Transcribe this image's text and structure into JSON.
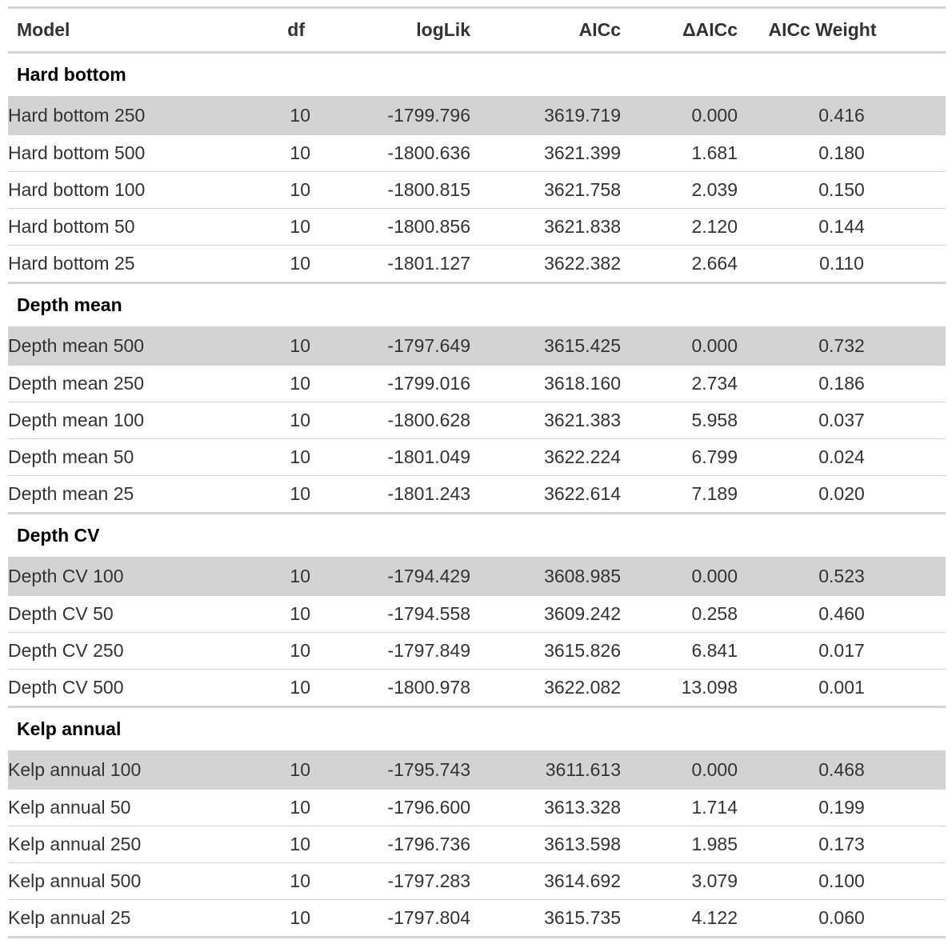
{
  "table": {
    "headers": {
      "model": "Model",
      "df": "df",
      "loglik": "logLik",
      "aicc": "AICc",
      "daicc": "ΔAICc",
      "weight": "AICc Weight"
    },
    "groups": [
      {
        "name": "Hard bottom",
        "rows": [
          {
            "model": "Hard bottom 250",
            "df": "10",
            "loglik": "-1799.796",
            "aicc": "3619.719",
            "daicc": "0.000",
            "weight": "0.416"
          },
          {
            "model": "Hard bottom 500",
            "df": "10",
            "loglik": "-1800.636",
            "aicc": "3621.399",
            "daicc": "1.681",
            "weight": "0.180"
          },
          {
            "model": "Hard bottom 100",
            "df": "10",
            "loglik": "-1800.815",
            "aicc": "3621.758",
            "daicc": "2.039",
            "weight": "0.150"
          },
          {
            "model": "Hard bottom 50",
            "df": "10",
            "loglik": "-1800.856",
            "aicc": "3621.838",
            "daicc": "2.120",
            "weight": "0.144"
          },
          {
            "model": "Hard bottom 25",
            "df": "10",
            "loglik": "-1801.127",
            "aicc": "3622.382",
            "daicc": "2.664",
            "weight": "0.110"
          }
        ]
      },
      {
        "name": "Depth mean",
        "rows": [
          {
            "model": "Depth mean 500",
            "df": "10",
            "loglik": "-1797.649",
            "aicc": "3615.425",
            "daicc": "0.000",
            "weight": "0.732"
          },
          {
            "model": "Depth mean 250",
            "df": "10",
            "loglik": "-1799.016",
            "aicc": "3618.160",
            "daicc": "2.734",
            "weight": "0.186"
          },
          {
            "model": "Depth mean 100",
            "df": "10",
            "loglik": "-1800.628",
            "aicc": "3621.383",
            "daicc": "5.958",
            "weight": "0.037"
          },
          {
            "model": "Depth mean 50",
            "df": "10",
            "loglik": "-1801.049",
            "aicc": "3622.224",
            "daicc": "6.799",
            "weight": "0.024"
          },
          {
            "model": "Depth mean 25",
            "df": "10",
            "loglik": "-1801.243",
            "aicc": "3622.614",
            "daicc": "7.189",
            "weight": "0.020"
          }
        ]
      },
      {
        "name": "Depth CV",
        "rows": [
          {
            "model": "Depth CV 100",
            "df": "10",
            "loglik": "-1794.429",
            "aicc": "3608.985",
            "daicc": "0.000",
            "weight": "0.523"
          },
          {
            "model": "Depth CV 50",
            "df": "10",
            "loglik": "-1794.558",
            "aicc": "3609.242",
            "daicc": "0.258",
            "weight": "0.460"
          },
          {
            "model": "Depth CV 250",
            "df": "10",
            "loglik": "-1797.849",
            "aicc": "3615.826",
            "daicc": "6.841",
            "weight": "0.017"
          },
          {
            "model": "Depth CV 500",
            "df": "10",
            "loglik": "-1800.978",
            "aicc": "3622.082",
            "daicc": "13.098",
            "weight": "0.001"
          }
        ]
      },
      {
        "name": "Kelp annual",
        "rows": [
          {
            "model": "Kelp annual 100",
            "df": "10",
            "loglik": "-1795.743",
            "aicc": "3611.613",
            "daicc": "0.000",
            "weight": "0.468"
          },
          {
            "model": "Kelp annual 50",
            "df": "10",
            "loglik": "-1796.600",
            "aicc": "3613.328",
            "daicc": "1.714",
            "weight": "0.199"
          },
          {
            "model": "Kelp annual 250",
            "df": "10",
            "loglik": "-1796.736",
            "aicc": "3613.598",
            "daicc": "1.985",
            "weight": "0.173"
          },
          {
            "model": "Kelp annual 500",
            "df": "10",
            "loglik": "-1797.283",
            "aicc": "3614.692",
            "daicc": "3.079",
            "weight": "0.100"
          },
          {
            "model": "Kelp annual 25",
            "df": "10",
            "loglik": "-1797.804",
            "aicc": "3615.735",
            "daicc": "4.122",
            "weight": "0.060"
          }
        ]
      }
    ],
    "colors": {
      "highlight_row": "#d3d3d3",
      "rule": "#d3d3d3",
      "text": "#333333",
      "group_text": "#000000"
    }
  }
}
